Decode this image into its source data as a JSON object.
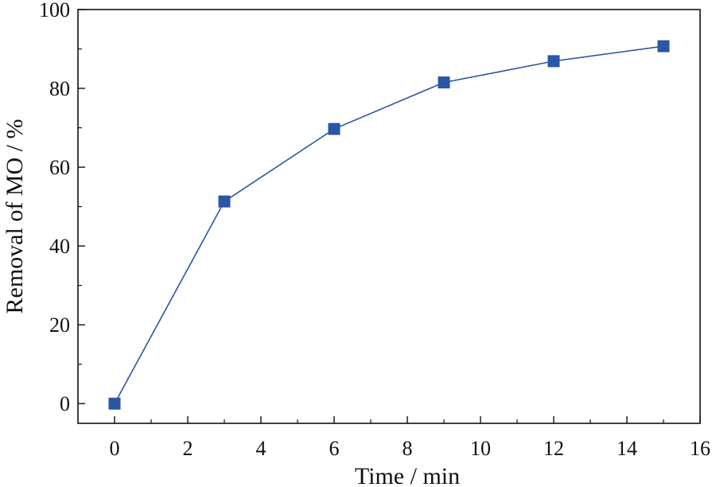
{
  "chart_data": {
    "type": "line",
    "xlabel": "Time / min",
    "ylabel": "Removal of MO / %",
    "xlim": [
      -1,
      16
    ],
    "ylim": [
      -5,
      100
    ],
    "x_ticks": [
      0,
      2,
      4,
      6,
      8,
      10,
      12,
      14,
      16
    ],
    "y_ticks": [
      0,
      20,
      40,
      60,
      80,
      100
    ],
    "x_tick_labels": [
      "0",
      "2",
      "4",
      "6",
      "8",
      "10",
      "12",
      "14",
      "16"
    ],
    "y_tick_labels": [
      "0",
      "20",
      "40",
      "60",
      "80",
      "100"
    ],
    "x_minor_ticks": [
      1,
      3,
      5,
      7,
      9,
      11,
      13,
      15
    ],
    "y_minor_ticks": [
      10,
      30,
      50,
      70,
      90
    ],
    "grid": false,
    "series": [
      {
        "marker": "square",
        "color": "#2b55a5",
        "x": [
          0,
          3,
          6,
          9,
          12,
          15
        ],
        "y": [
          0,
          51.3,
          69.7,
          81.5,
          86.9,
          90.7
        ]
      }
    ]
  }
}
